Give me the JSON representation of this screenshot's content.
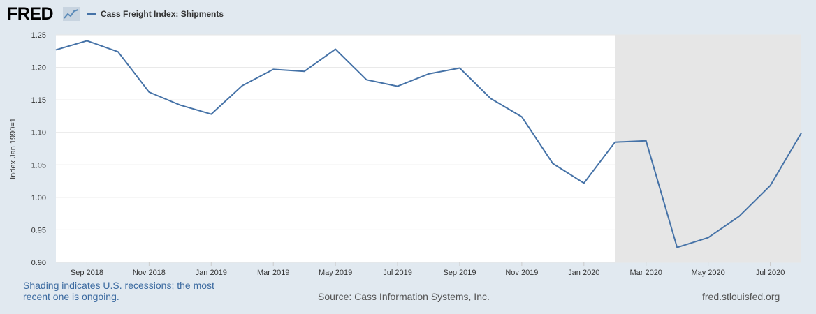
{
  "header": {
    "logo_text": "FRED",
    "legend_label": "Cass Freight Index: Shipments"
  },
  "colors": {
    "background": "#e1e9f0",
    "plot_background": "#ffffff",
    "recession_shading": "#e6e6e6",
    "series_line": "#4572a7"
  },
  "chart_data": {
    "type": "line",
    "title": "",
    "ylabel": "Index Jan 1990=1",
    "xlabel": "",
    "ylim": [
      0.9,
      1.25
    ],
    "xlim": [
      "2018-08",
      "2020-08"
    ],
    "grid": true,
    "y_ticks": [
      "0.90",
      "0.95",
      "1.00",
      "1.05",
      "1.10",
      "1.15",
      "1.20",
      "1.25"
    ],
    "x_ticks": [
      "Sep 2018",
      "Nov 2018",
      "Jan 2019",
      "Mar 2019",
      "May 2019",
      "Jul 2019",
      "Sep 2019",
      "Nov 2019",
      "Jan 2020",
      "Mar 2020",
      "May 2020",
      "Jul 2020"
    ],
    "recession": {
      "start": "2020-02",
      "end": "ongoing"
    },
    "series": [
      {
        "name": "Cass Freight Index: Shipments",
        "x": [
          "2018-08",
          "2018-09",
          "2018-10",
          "2018-11",
          "2018-12",
          "2019-01",
          "2019-02",
          "2019-03",
          "2019-04",
          "2019-05",
          "2019-06",
          "2019-07",
          "2019-08",
          "2019-09",
          "2019-10",
          "2019-11",
          "2019-12",
          "2020-01",
          "2020-02",
          "2020-03",
          "2020-04",
          "2020-05",
          "2020-06",
          "2020-07",
          "2020-08"
        ],
        "values": [
          1.227,
          1.241,
          1.224,
          1.162,
          1.142,
          1.128,
          1.172,
          1.197,
          1.194,
          1.228,
          1.181,
          1.171,
          1.19,
          1.199,
          1.152,
          1.124,
          1.052,
          1.022,
          1.085,
          1.087,
          0.923,
          0.938,
          0.971,
          1.018,
          1.099
        ]
      }
    ]
  },
  "footer": {
    "note": "Shading indicates U.S. recessions; the most recent one is ongoing.",
    "source": "Source: Cass Information Systems, Inc.",
    "site": "fred.stlouisfed.org"
  }
}
